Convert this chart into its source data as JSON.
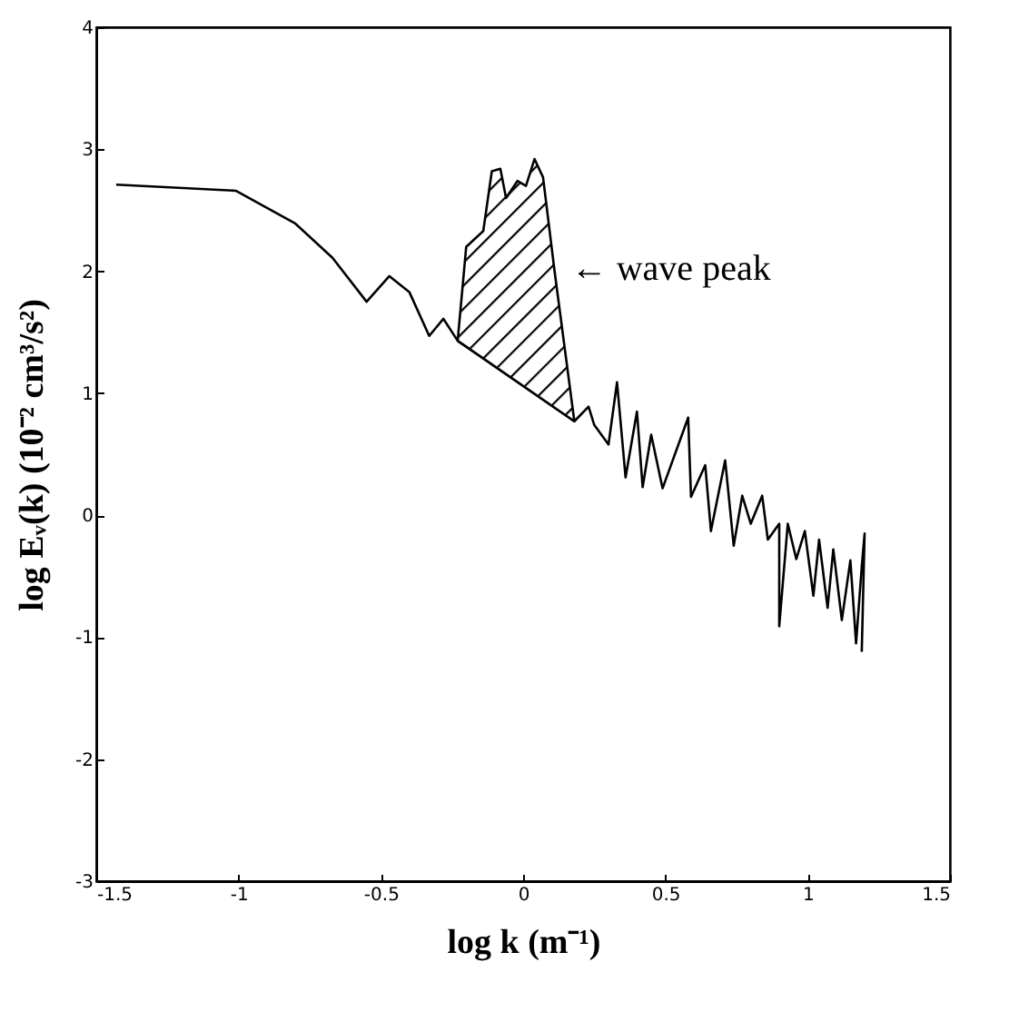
{
  "chart_data": {
    "type": "line",
    "xlabel": "log k   (m⁻¹)",
    "ylabel": "log Eᵥ(k)   (10⁻² cm³/s²)",
    "xlim": [
      -1.5,
      1.5
    ],
    "xticks": [
      -1.5,
      -1,
      -0.5,
      0,
      0.5,
      1,
      1.5
    ],
    "ylim": [
      -3,
      4
    ],
    "yticks": [
      -3,
      -2,
      -1,
      0,
      1,
      2,
      3,
      4
    ],
    "grid": false,
    "marker": "none",
    "line_style": "solid",
    "annotations": [
      {
        "text": "← wave peak",
        "x": 0.13,
        "y": 2.02
      }
    ],
    "series": [
      {
        "type": "line",
        "color": "#000000",
        "x": [
          -1.43,
          -1.01,
          -0.8,
          -0.67,
          -0.55,
          -0.47,
          -0.4,
          -0.33,
          -0.28,
          -0.23,
          0.18,
          0.23,
          0.25,
          0.3,
          0.33,
          0.36,
          0.4,
          0.42,
          0.45,
          0.49,
          0.58,
          0.59,
          0.64,
          0.66,
          0.71,
          0.74,
          0.77,
          0.8,
          0.84,
          0.86,
          0.9,
          0.9,
          0.93,
          0.96,
          0.99,
          1.02,
          1.04,
          1.07,
          1.09,
          1.12,
          1.15,
          1.17,
          1.19,
          1.2,
          1.19
        ],
        "values": [
          2.71,
          2.66,
          2.39,
          2.11,
          1.75,
          1.96,
          1.83,
          1.47,
          1.61,
          1.43,
          0.77,
          0.89,
          0.74,
          0.58,
          1.09,
          0.31,
          0.85,
          0.23,
          0.66,
          0.22,
          0.8,
          0.15,
          0.41,
          -0.13,
          0.45,
          -0.25,
          0.16,
          -0.07,
          0.16,
          -0.2,
          -0.07,
          -0.91,
          -0.07,
          -0.36,
          -0.13,
          -0.66,
          -0.2,
          -0.76,
          -0.28,
          -0.86,
          -0.37,
          -1.05,
          -0.42,
          -0.15,
          -1.12
        ]
      },
      {
        "type": "area",
        "color": "#000000",
        "x": [
          -0.23,
          -0.2,
          -0.14,
          -0.11,
          -0.08,
          -0.06,
          -0.02,
          0.01,
          0.04,
          0.07,
          0.11,
          0.18
        ],
        "values": [
          1.43,
          2.2,
          2.33,
          2.82,
          2.84,
          2.6,
          2.74,
          2.7,
          2.92,
          2.77,
          2.01,
          0.77
        ]
      }
    ]
  }
}
